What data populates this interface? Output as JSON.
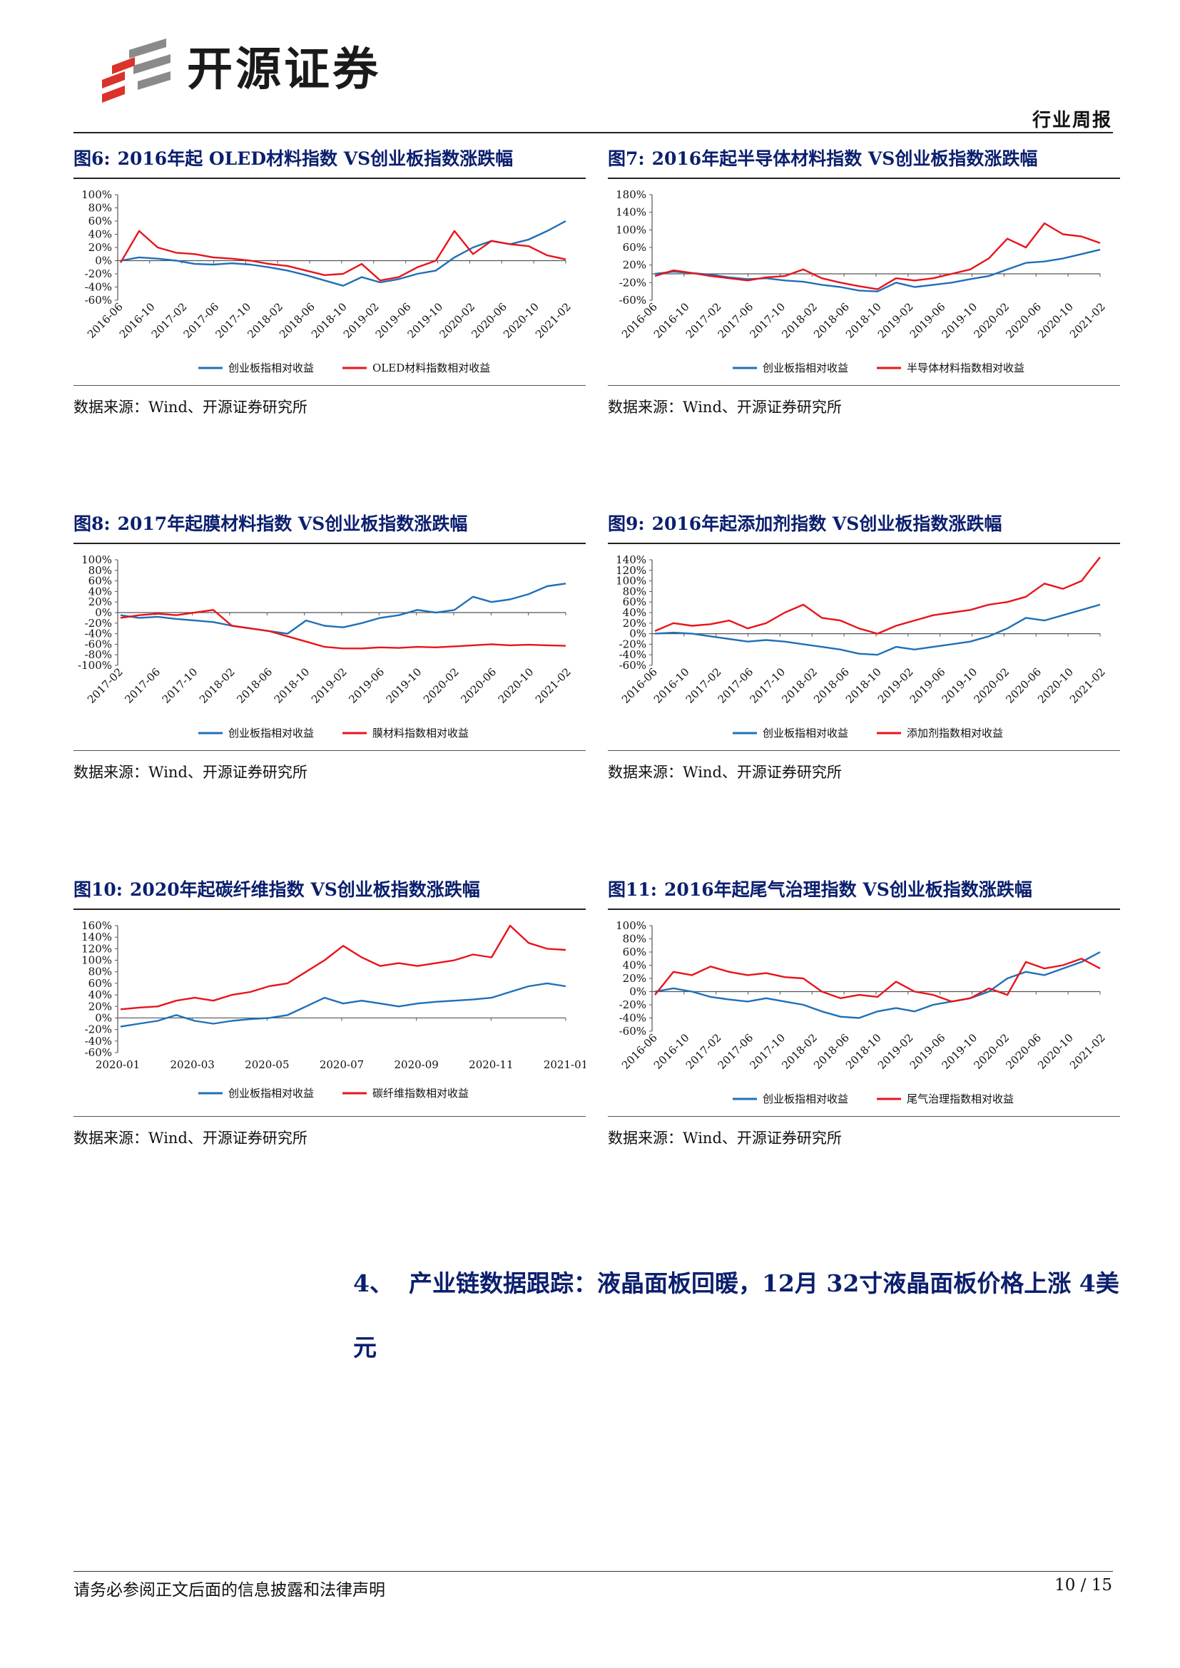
{
  "header": {
    "company_name": "开源证券",
    "report_type": "行业周报",
    "colors": {
      "logo_red": "#d9332b",
      "logo_grey": "#8a8a8a",
      "title_blue": "#0b1f6e"
    }
  },
  "figures": [
    {
      "id": "fig6",
      "label": "图6:",
      "title": "2016年起 OLED材料指数 VS创业板指数涨跌幅",
      "source": "数据来源：Wind、开源证券研究所",
      "chart_data": {
        "type": "line",
        "y_ticks": [
          "100%",
          "80%",
          "60%",
          "40%",
          "20%",
          "0%",
          "-20%",
          "-40%",
          "-60%"
        ],
        "ylim": [
          -60,
          100
        ],
        "x_ticks": [
          "2016-06",
          "2016-10",
          "2017-02",
          "2017-06",
          "2017-10",
          "2018-02",
          "2018-06",
          "2018-10",
          "2019-02",
          "2019-06",
          "2019-10",
          "2020-02",
          "2020-06",
          "2020-10",
          "2021-02"
        ],
        "series": [
          {
            "name": "创业板指相对收益",
            "color": "#1f6fb8",
            "values": [
              0,
              5,
              3,
              0,
              -5,
              -6,
              -4,
              -6,
              -10,
              -15,
              -22,
              -30,
              -38,
              -25,
              -33,
              -28,
              -20,
              -15,
              5,
              20,
              30,
              25,
              32,
              45,
              60
            ]
          },
          {
            "name": "OLED材料指数相对收益",
            "color": "#e8141b",
            "values": [
              -3,
              45,
              20,
              12,
              10,
              5,
              3,
              0,
              -5,
              -8,
              -15,
              -22,
              -20,
              -5,
              -30,
              -25,
              -10,
              0,
              45,
              10,
              30,
              25,
              22,
              8,
              2
            ]
          }
        ]
      }
    },
    {
      "id": "fig7",
      "label": "图7:",
      "title": "2016年起半导体材料指数 VS创业板指数涨跌幅",
      "source": "数据来源：Wind、开源证券研究所",
      "chart_data": {
        "type": "line",
        "y_ticks": [
          "180%",
          "140%",
          "100%",
          "60%",
          "20%",
          "-20%",
          "-60%"
        ],
        "ylim": [
          -60,
          180
        ],
        "x_ticks": [
          "2016-06",
          "2016-10",
          "2017-02",
          "2017-06",
          "2017-10",
          "2018-02",
          "2018-06",
          "2018-10",
          "2019-02",
          "2019-06",
          "2019-10",
          "2020-02",
          "2020-06",
          "2020-10",
          "2021-02"
        ],
        "series": [
          {
            "name": "创业板指相对收益",
            "color": "#1f6fb8",
            "values": [
              0,
              5,
              2,
              -2,
              -8,
              -12,
              -10,
              -15,
              -18,
              -25,
              -30,
              -38,
              -40,
              -20,
              -30,
              -25,
              -20,
              -12,
              -5,
              10,
              25,
              28,
              35,
              45,
              55
            ]
          },
          {
            "name": "半导体材料指数相对收益",
            "color": "#e8141b",
            "values": [
              -5,
              8,
              2,
              -5,
              -10,
              -15,
              -8,
              -5,
              10,
              -10,
              -20,
              -28,
              -35,
              -10,
              -15,
              -10,
              0,
              10,
              35,
              80,
              60,
              115,
              90,
              85,
              70
            ]
          }
        ]
      }
    },
    {
      "id": "fig8",
      "label": "图8:",
      "title": "2017年起膜材料指数 VS创业板指数涨跌幅",
      "source": "数据来源：Wind、开源证券研究所",
      "chart_data": {
        "type": "line",
        "y_ticks": [
          "100%",
          "80%",
          "60%",
          "40%",
          "20%",
          "0%",
          "-20%",
          "-40%",
          "-60%",
          "-80%",
          "-100%"
        ],
        "ylim": [
          -100,
          100
        ],
        "x_ticks": [
          "2017-02",
          "2017-06",
          "2017-10",
          "2018-02",
          "2018-06",
          "2018-10",
          "2019-02",
          "2019-06",
          "2019-10",
          "2020-02",
          "2020-06",
          "2020-10",
          "2021-02"
        ],
        "series": [
          {
            "name": "创业板指相对收益",
            "color": "#1f6fb8",
            "values": [
              -5,
              -10,
              -8,
              -12,
              -15,
              -18,
              -25,
              -30,
              -35,
              -40,
              -15,
              -25,
              -28,
              -20,
              -10,
              -5,
              5,
              0,
              5,
              30,
              20,
              25,
              35,
              50,
              55
            ]
          },
          {
            "name": "膜材料指数相对收益",
            "color": "#e8141b",
            "values": [
              -10,
              -5,
              -2,
              -5,
              0,
              5,
              -25,
              -30,
              -35,
              -45,
              -55,
              -65,
              -68,
              -68,
              -66,
              -67,
              -65,
              -66,
              -64,
              -62,
              -60,
              -62,
              -61,
              -62,
              -63
            ]
          }
        ]
      }
    },
    {
      "id": "fig9",
      "label": "图9:",
      "title": "2016年起添加剂指数 VS创业板指数涨跌幅",
      "source": "数据来源：Wind、开源证券研究所",
      "chart_data": {
        "type": "line",
        "y_ticks": [
          "140%",
          "120%",
          "100%",
          "80%",
          "60%",
          "40%",
          "20%",
          "0%",
          "-20%",
          "-40%",
          "-60%"
        ],
        "ylim": [
          -60,
          140
        ],
        "x_ticks": [
          "2016-06",
          "2016-10",
          "2017-02",
          "2017-06",
          "2017-10",
          "2018-02",
          "2018-06",
          "2018-10",
          "2019-02",
          "2019-06",
          "2019-10",
          "2020-02",
          "2020-06",
          "2020-10",
          "2021-02"
        ],
        "series": [
          {
            "name": "创业板指相对收益",
            "color": "#1f6fb8",
            "values": [
              0,
              2,
              0,
              -5,
              -10,
              -15,
              -12,
              -15,
              -20,
              -25,
              -30,
              -38,
              -40,
              -25,
              -30,
              -25,
              -20,
              -15,
              -5,
              10,
              30,
              25,
              35,
              45,
              55
            ]
          },
          {
            "name": "添加剂指数相对收益",
            "color": "#e8141b",
            "values": [
              5,
              20,
              15,
              18,
              25,
              10,
              20,
              40,
              55,
              30,
              25,
              10,
              0,
              15,
              25,
              35,
              40,
              45,
              55,
              60,
              70,
              95,
              85,
              100,
              145
            ]
          }
        ]
      }
    },
    {
      "id": "fig10",
      "label": "图10:",
      "title": "2020年起碳纤维指数 VS创业板指数涨跌幅",
      "source": "数据来源：Wind、开源证券研究所",
      "chart_data": {
        "type": "line",
        "y_ticks": [
          "160%",
          "140%",
          "120%",
          "100%",
          "80%",
          "60%",
          "40%",
          "20%",
          "0%",
          "-20%",
          "-40%",
          "-60%"
        ],
        "ylim": [
          -60,
          160
        ],
        "x_ticks": [
          "2020-01",
          "2020-03",
          "2020-05",
          "2020-07",
          "2020-09",
          "2020-11",
          "2021-01"
        ],
        "series": [
          {
            "name": "创业板指相对收益",
            "color": "#1f6fb8",
            "values": [
              -15,
              -10,
              -5,
              5,
              -5,
              -10,
              -5,
              -2,
              0,
              5,
              20,
              35,
              25,
              30,
              25,
              20,
              25,
              28,
              30,
              32,
              35,
              45,
              55,
              60,
              55
            ]
          },
          {
            "name": "碳纤维指数相对收益",
            "color": "#e8141b",
            "values": [
              15,
              18,
              20,
              30,
              35,
              30,
              40,
              45,
              55,
              60,
              80,
              100,
              125,
              105,
              90,
              95,
              90,
              95,
              100,
              110,
              105,
              160,
              130,
              120,
              118
            ]
          }
        ]
      }
    },
    {
      "id": "fig11",
      "label": "图11:",
      "title": "2016年起尾气治理指数 VS创业板指数涨跌幅",
      "source": "数据来源：Wind、开源证券研究所",
      "chart_data": {
        "type": "line",
        "y_ticks": [
          "100%",
          "80%",
          "60%",
          "40%",
          "20%",
          "0%",
          "-20%",
          "-40%",
          "-60%"
        ],
        "ylim": [
          -60,
          100
        ],
        "x_ticks": [
          "2016-06",
          "2016-10",
          "2017-02",
          "2017-06",
          "2017-10",
          "2018-02",
          "2018-06",
          "2018-10",
          "2019-02",
          "2019-06",
          "2019-10",
          "2020-02",
          "2020-06",
          "2020-10",
          "2021-02"
        ],
        "series": [
          {
            "name": "创业板指相对收益",
            "color": "#1f6fb8",
            "values": [
              0,
              5,
              0,
              -8,
              -12,
              -15,
              -10,
              -15,
              -20,
              -30,
              -38,
              -40,
              -30,
              -25,
              -30,
              -20,
              -15,
              -10,
              0,
              20,
              30,
              25,
              35,
              45,
              60
            ]
          },
          {
            "name": "尾气治理指数相对收益",
            "color": "#e8141b",
            "values": [
              -5,
              30,
              25,
              38,
              30,
              25,
              28,
              22,
              20,
              0,
              -10,
              -5,
              -8,
              15,
              0,
              -5,
              -15,
              -10,
              5,
              -5,
              45,
              35,
              40,
              50,
              35
            ]
          }
        ]
      }
    }
  ],
  "section": {
    "number": "4、",
    "heading": "产业链数据跟踪：液晶面板回暖，12月 32寸液晶面板价格上涨 4美元"
  },
  "footer": {
    "disclaimer": "请务必参阅正文后面的信息披露和法律声明",
    "page": "10 / 15"
  }
}
